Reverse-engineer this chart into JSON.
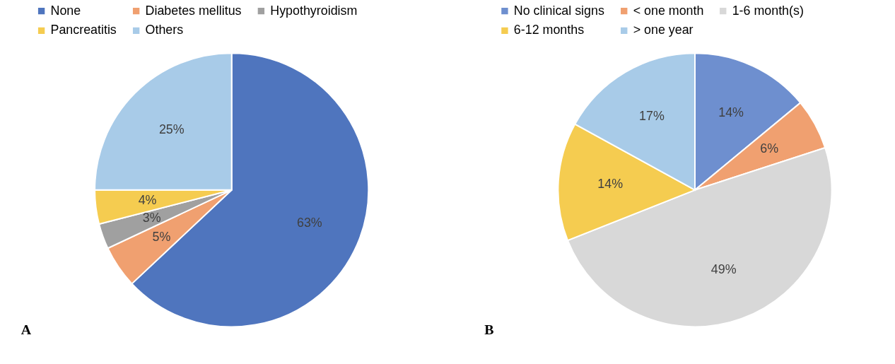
{
  "chart_data": [
    {
      "type": "pie",
      "categories": [
        "None",
        "Diabetes mellitus",
        "Hypothyroidism",
        "Pancreatitis",
        "Others"
      ],
      "values": [
        63,
        5,
        3,
        4,
        25
      ],
      "value_labels": [
        "63%",
        "5%",
        "3%",
        "4%",
        "25%"
      ],
      "colors": [
        "#4f75be",
        "#f0a070",
        "#a0a0a0",
        "#f5cc50",
        "#a8cbe8"
      ],
      "legend": "top",
      "annotations": [
        "A"
      ]
    },
    {
      "type": "pie",
      "categories": [
        "No clinical signs",
        "< one month",
        "1-6 month(s)",
        "6-12 months",
        "> one year"
      ],
      "values": [
        14,
        6,
        49,
        14,
        17
      ],
      "value_labels": [
        "14%",
        "6%",
        "49%",
        "14%",
        "17%"
      ],
      "colors": [
        "#6e8fcf",
        "#f0a070",
        "#d8d8d8",
        "#f5cc50",
        "#a8cbe8"
      ],
      "legend": "top",
      "annotations": [
        "B"
      ]
    }
  ]
}
